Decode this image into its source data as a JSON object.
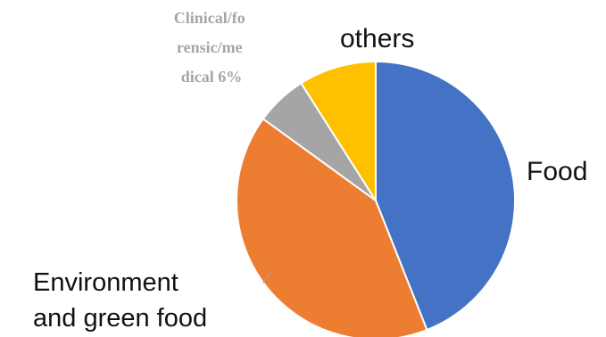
{
  "chart_data": {
    "type": "pie",
    "title": "",
    "slices": [
      {
        "label": "Food",
        "label_lines": [
          "Food"
        ],
        "value": 44,
        "color": "#4472C4"
      },
      {
        "label": "Environment and green food",
        "label_lines": [
          "Environment",
          "and green food"
        ],
        "value": 41,
        "color": "#ED7D31"
      },
      {
        "label": "Clinical/forensic/medical",
        "label_lines": [
          "Clinical/fo",
          "rensic/me",
          "dical 6%"
        ],
        "value": 6,
        "color": "#A5A5A5"
      },
      {
        "label": "others",
        "label_lines": [
          "others"
        ],
        "value": 9,
        "color": "#FFC000"
      }
    ],
    "legend": "none",
    "label_placement": "outside"
  }
}
